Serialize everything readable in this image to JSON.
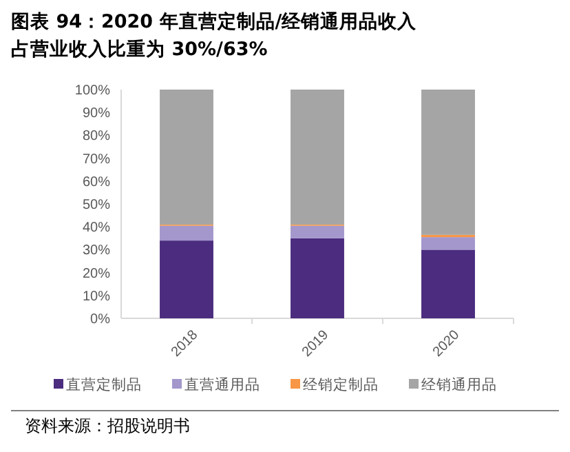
{
  "chart_data": {
    "type": "bar",
    "stacked": true,
    "title": "图表 94：2020 年直营定制品/经销通用品收入占营业收入比重为 30%/63%",
    "categories": [
      "2018",
      "2019",
      "2020"
    ],
    "series": [
      {
        "name": "直营定制品",
        "color": "#4b2c7f",
        "values": [
          34,
          35,
          30
        ]
      },
      {
        "name": "直营通用品",
        "color": "#a397cc",
        "values": [
          6.5,
          5.5,
          5.5
        ]
      },
      {
        "name": "经销定制品",
        "color": "#f79646",
        "values": [
          0.5,
          0.5,
          1
        ]
      },
      {
        "name": "经销通用品",
        "color": "#a5a5a5",
        "values": [
          59,
          59,
          63.5
        ]
      }
    ],
    "ylim": [
      0,
      100
    ],
    "yticks": [
      {
        "value": 0,
        "label": "0%"
      },
      {
        "value": 10,
        "label": "10%"
      },
      {
        "value": 20,
        "label": "20%"
      },
      {
        "value": 30,
        "label": "30%"
      },
      {
        "value": 40,
        "label": "40%"
      },
      {
        "value": 50,
        "label": "50%"
      },
      {
        "value": 60,
        "label": "60%"
      },
      {
        "value": 70,
        "label": "70%"
      },
      {
        "value": 80,
        "label": "80%"
      },
      {
        "value": 90,
        "label": "90%"
      },
      {
        "value": 100,
        "label": "100%"
      }
    ],
    "legend": "bottom",
    "annotations": [
      "资料来源：招股说明书"
    ]
  }
}
